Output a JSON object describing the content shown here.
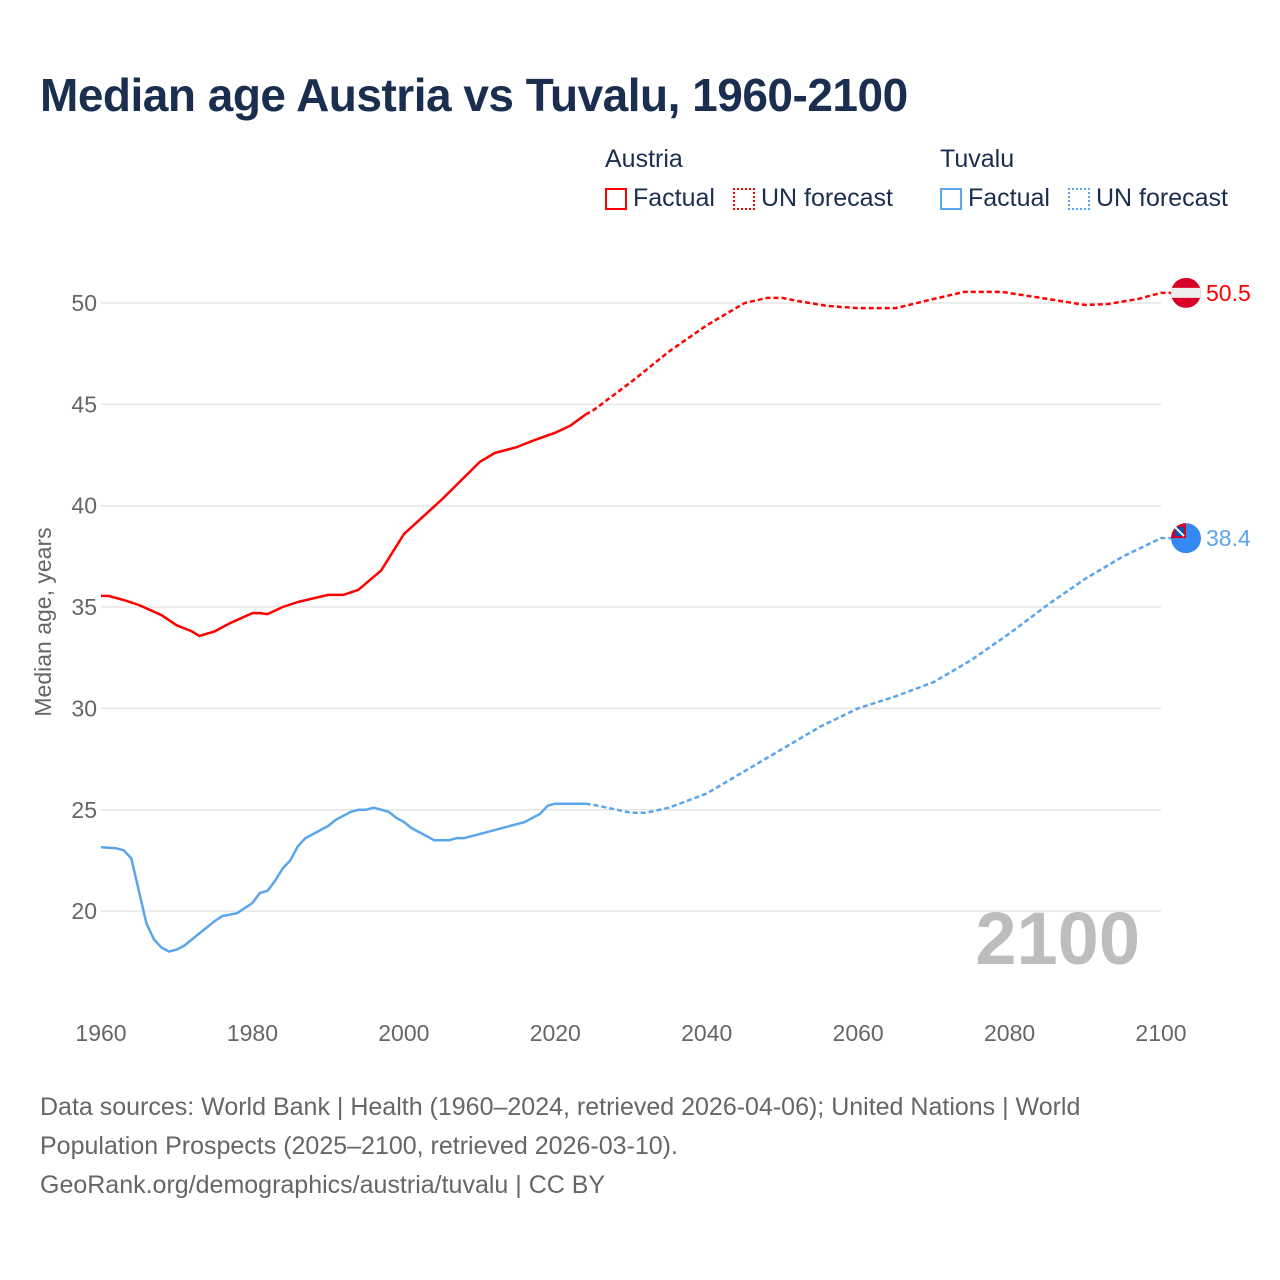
{
  "title": "Median age Austria vs Tuvalu, 1960-2100",
  "legend": [
    {
      "group": "Austria",
      "color": "#ff0000",
      "items": [
        "Factual",
        "UN forecast"
      ]
    },
    {
      "group": "Tuvalu",
      "color": "#5aa5ec",
      "items": [
        "Factual",
        "UN forecast"
      ]
    }
  ],
  "footer": {
    "line1": "Data sources: World Bank | Health (1960–2024, retrieved 2026-04-06); United Nations | World Population Prospects (2025–2100, retrieved 2026-03-10).",
    "line2": "GeoRank.org/demographics/austria/tuvalu | CC BY"
  },
  "chart_data": {
    "type": "line",
    "title": "Median age Austria vs Tuvalu, 1960-2100",
    "xlabel": "",
    "ylabel": "Median age, years",
    "xlim": [
      1960,
      2100
    ],
    "ylim": [
      15.3,
      52.5
    ],
    "xticks": [
      1960,
      1980,
      2000,
      2020,
      2040,
      2060,
      2080,
      2100
    ],
    "yticks": [
      20,
      25,
      30,
      35,
      40,
      45,
      50
    ],
    "grid": true,
    "year_label": "2100",
    "forecast_start": 2024,
    "series": [
      {
        "name": "Austria",
        "color": "#ff0000",
        "end_label": "50.5",
        "x": [
          1960,
          1961,
          1963,
          1965,
          1968,
          1970,
          1972,
          1973,
          1975,
          1977,
          1980,
          1981,
          1982,
          1984,
          1986,
          1990,
          1992,
          1994,
          1997,
          2000,
          2005,
          2010,
          2012,
          2015,
          2017,
          2020,
          2022,
          2024,
          2025,
          2030,
          2035,
          2040,
          2045,
          2048,
          2050,
          2052,
          2056,
          2060,
          2065,
          2070,
          2074,
          2079,
          2085,
          2090,
          2093,
          2097,
          2100
        ],
        "y": [
          35.55,
          35.55,
          35.35,
          35.1,
          34.6,
          34.1,
          33.8,
          33.57,
          33.8,
          34.2,
          34.7,
          34.7,
          34.65,
          35.0,
          35.25,
          35.6,
          35.6,
          35.85,
          36.8,
          38.6,
          40.3,
          42.15,
          42.6,
          42.9,
          43.2,
          43.6,
          43.95,
          44.5,
          44.7,
          46.1,
          47.6,
          48.9,
          50.0,
          50.25,
          50.25,
          50.1,
          49.85,
          49.75,
          49.75,
          50.2,
          50.55,
          50.55,
          50.2,
          49.9,
          49.95,
          50.2,
          50.5
        ]
      },
      {
        "name": "Tuvalu",
        "color": "#5aa5ec",
        "end_label": "38.4",
        "x": [
          1960,
          1962,
          1963,
          1964,
          1966,
          1967,
          1968,
          1969,
          1970,
          1971,
          1973,
          1975,
          1976,
          1978,
          1980,
          1981,
          1982,
          1983,
          1984,
          1985,
          1986,
          1987,
          1988,
          1990,
          1991,
          1993,
          1994,
          1995,
          1996,
          1998,
          1999,
          2000,
          2001,
          2003,
          2004,
          2006,
          2007,
          2008,
          2010,
          2014,
          2016,
          2018,
          2019,
          2020,
          2024,
          2025,
          2030,
          2032,
          2035,
          2040,
          2045,
          2050,
          2055,
          2060,
          2065,
          2070,
          2075,
          2080,
          2085,
          2090,
          2095,
          2100
        ],
        "y": [
          23.15,
          23.1,
          23.0,
          22.6,
          19.4,
          18.6,
          18.2,
          18.0,
          18.1,
          18.3,
          18.9,
          19.5,
          19.75,
          19.9,
          20.4,
          20.9,
          21.0,
          21.5,
          22.1,
          22.5,
          23.2,
          23.6,
          23.8,
          24.2,
          24.5,
          24.9,
          25.0,
          25.0,
          25.1,
          24.9,
          24.6,
          24.4,
          24.1,
          23.7,
          23.5,
          23.5,
          23.6,
          23.6,
          23.8,
          24.2,
          24.4,
          24.8,
          25.2,
          25.3,
          25.3,
          25.25,
          24.85,
          24.85,
          25.1,
          25.8,
          26.9,
          28.0,
          29.1,
          30.0,
          30.6,
          31.3,
          32.4,
          33.7,
          35.1,
          36.4,
          37.5,
          38.4
        ]
      }
    ]
  }
}
